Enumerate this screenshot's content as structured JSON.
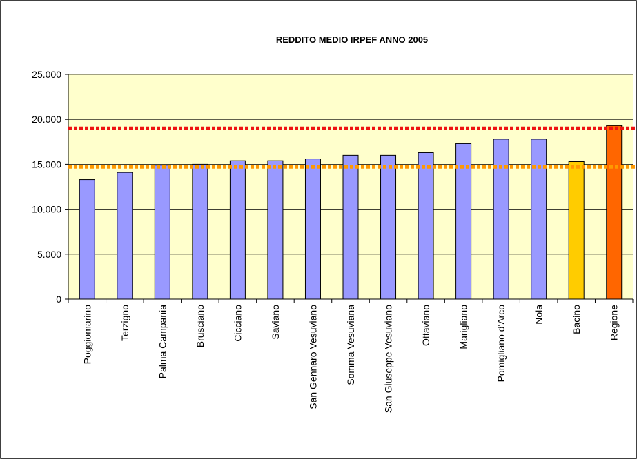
{
  "chart_data": {
    "type": "bar",
    "title": "REDDITO MEDIO IRPEF ANNO 2005",
    "categories": [
      "Poggiomarino",
      "Terzigno",
      "Palma Campania",
      "Brusciano",
      "Cicciano",
      "Saviano",
      "San Gennaro Vesuviano",
      "Somma Vesuviana",
      "San Giuseppe Vesuviano",
      "Ottaviano",
      "Marigliano",
      "Pomigliano d'Arco",
      "Nola",
      "Bacino",
      "Regione"
    ],
    "values": [
      13300,
      14100,
      14900,
      15000,
      15400,
      15400,
      15600,
      16000,
      16000,
      16300,
      17300,
      17800,
      17800,
      15300,
      19300
    ],
    "colors": [
      "#9999ff",
      "#9999ff",
      "#9999ff",
      "#9999ff",
      "#9999ff",
      "#9999ff",
      "#9999ff",
      "#9999ff",
      "#9999ff",
      "#9999ff",
      "#9999ff",
      "#9999ff",
      "#9999ff",
      "#ffcc00",
      "#ff6600"
    ],
    "reference_lines": [
      {
        "value": 19000,
        "color": "#ee1111"
      },
      {
        "value": 14700,
        "color": "#ff9900"
      }
    ],
    "ylim": [
      0,
      25000
    ],
    "yticks": [
      0,
      {
        "value": 5000,
        "label": "5.000"
      },
      {
        "value": 10000,
        "label": "10.000"
      },
      {
        "value": 15000,
        "label": "15.000"
      },
      {
        "value": 20000,
        "label": "20.000"
      },
      {
        "value": 25000,
        "label": "25.000"
      }
    ],
    "grid": true,
    "background": "#ffffcc"
  }
}
